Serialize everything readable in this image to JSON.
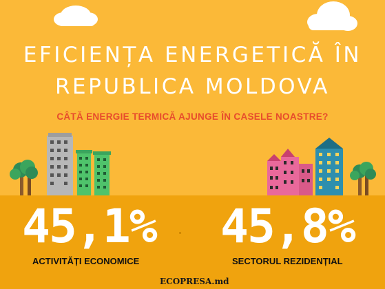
{
  "title_line1": "EFICIENȚA ENERGETICĂ ÎN",
  "title_line2": "REPUBLICA MOLDOVA",
  "subtitle": "CÂTĂ ENERGIE TERMICĂ AJUNGE ÎN CASELE NOASTRE?",
  "stats": [
    {
      "value": "45,1%",
      "label": "ACTIVITĂȚI ECONOMICE"
    },
    {
      "value": "45,8%",
      "label": "SECTORUL REZIDENȚIAL"
    }
  ],
  "credit": "ECOPRESA.md",
  "colors": {
    "background": "#FBB938",
    "ground": "#F0A30E",
    "subtitle": "#E74B2C",
    "text": "#FFFFFF"
  }
}
